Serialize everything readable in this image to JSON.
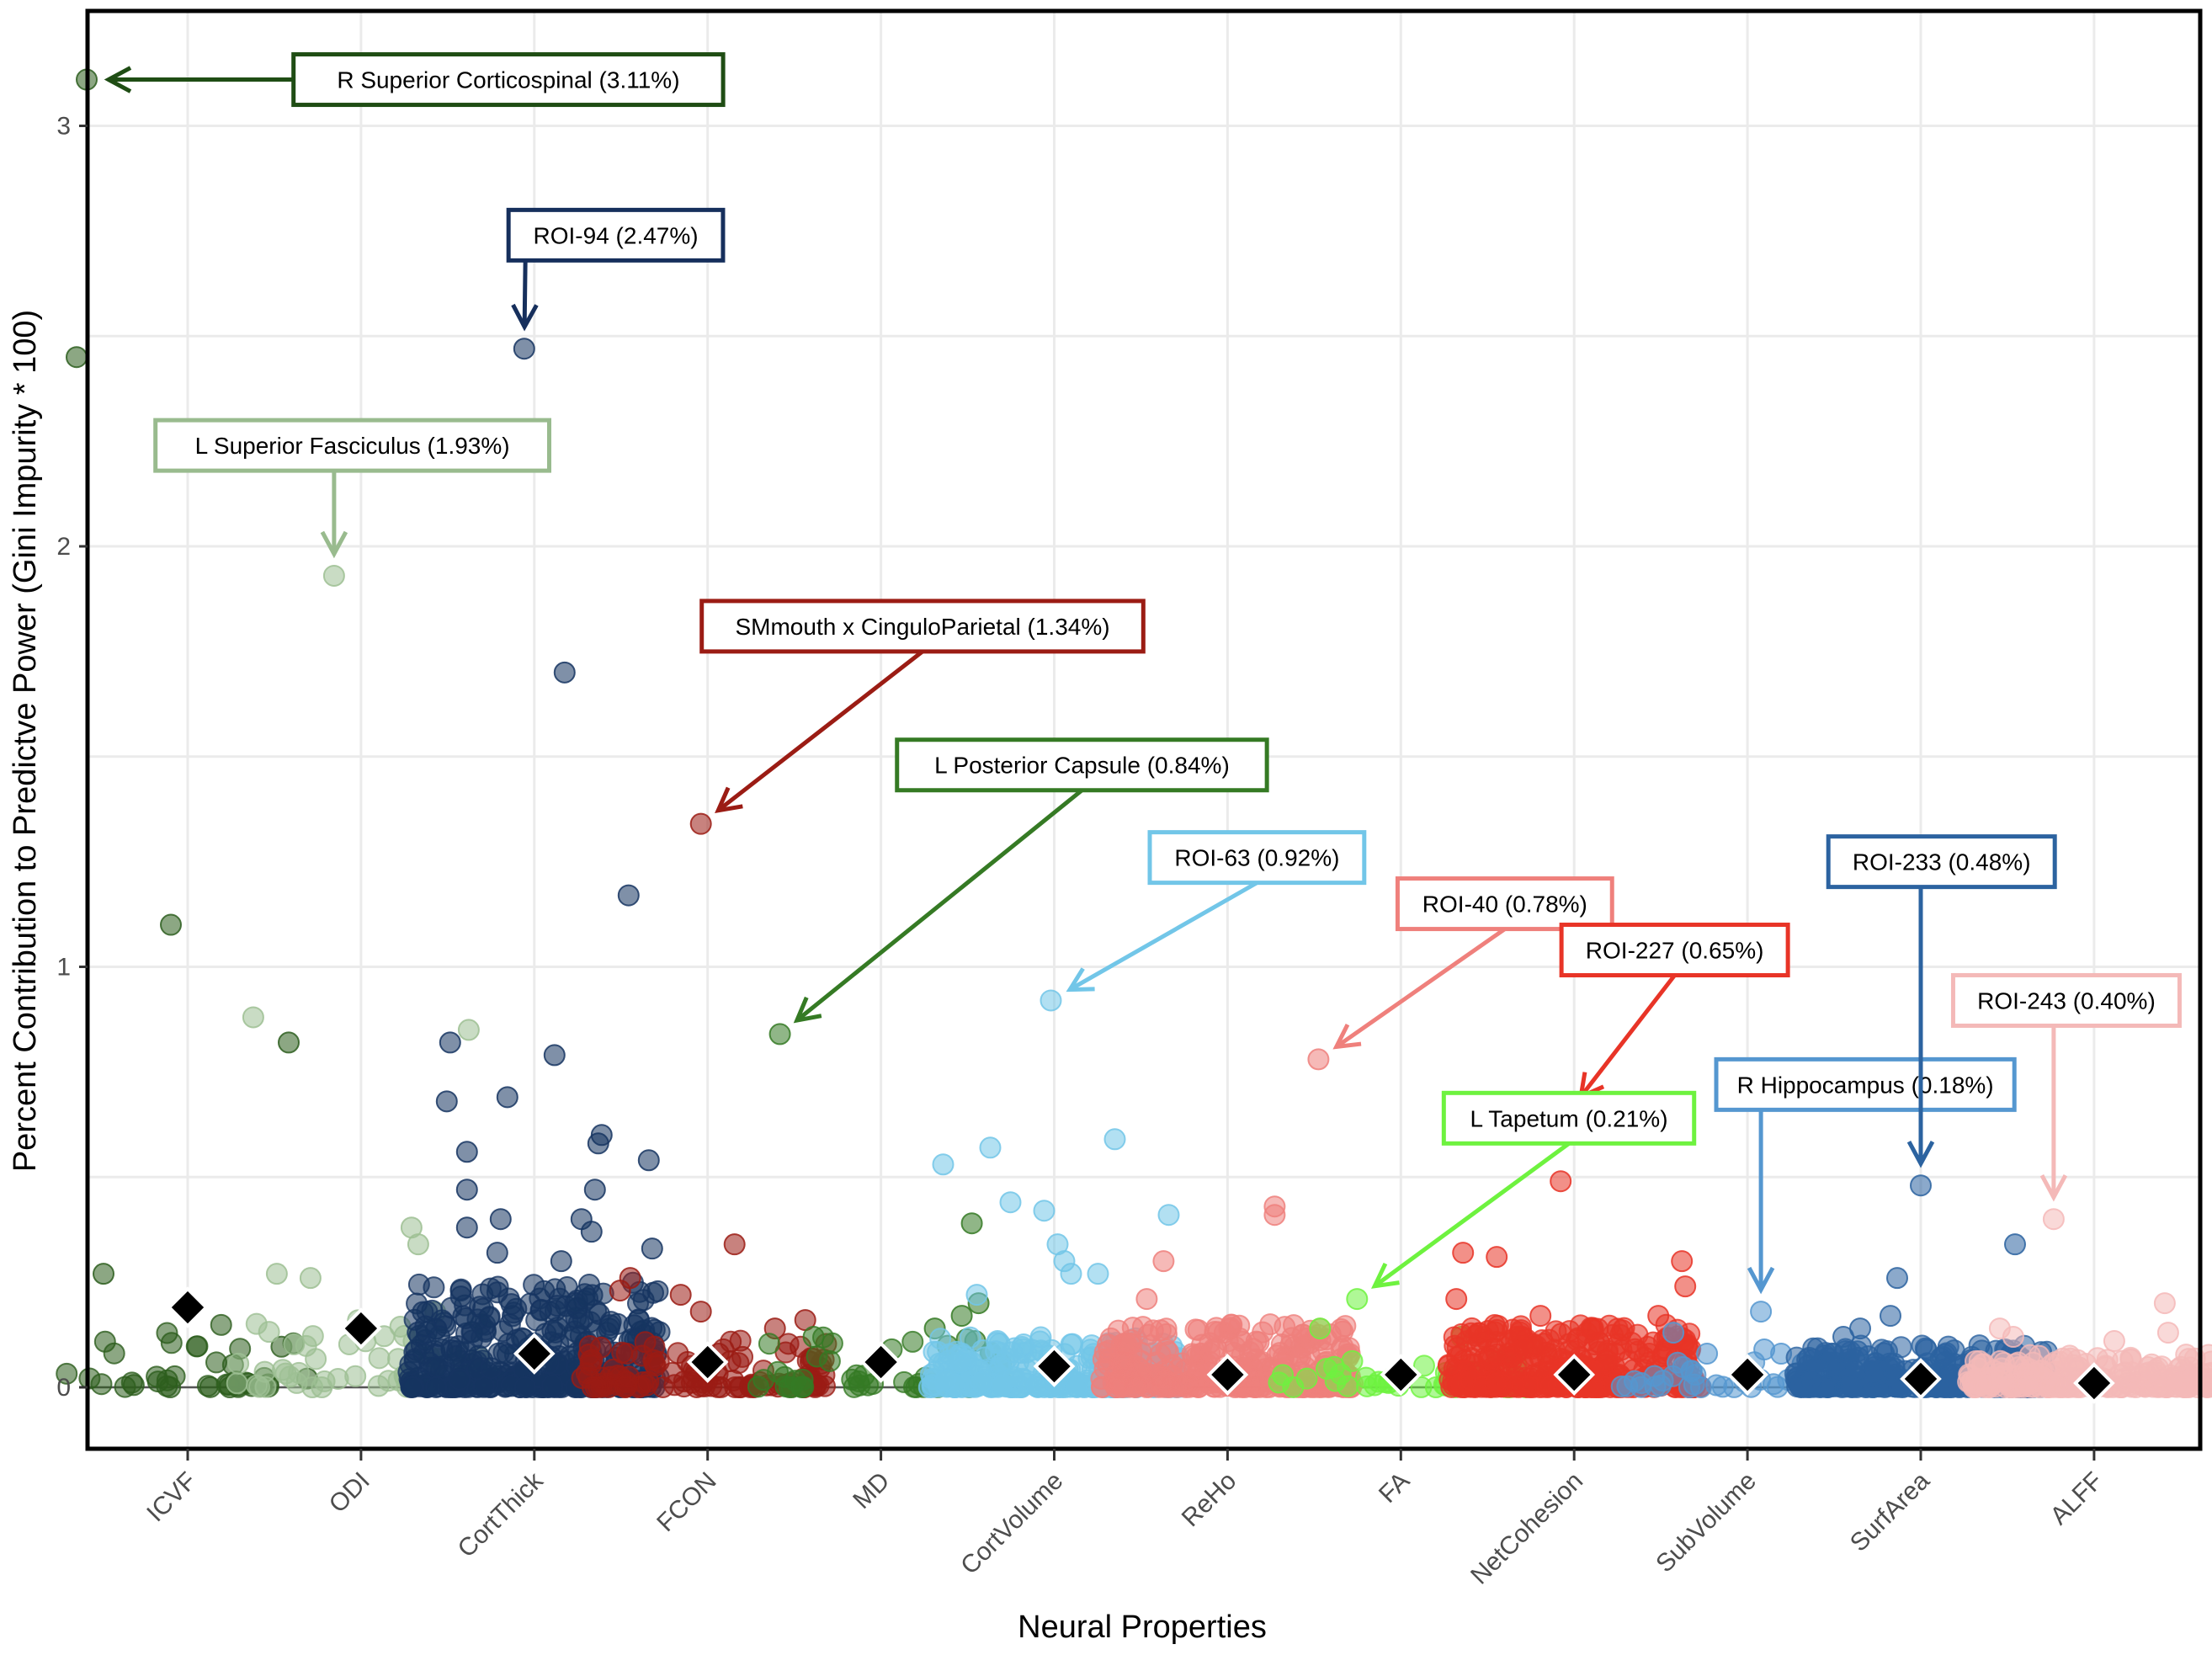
{
  "chart_data": {
    "type": "scatter",
    "subtype": "jittered strip plot with mean markers",
    "title": "",
    "xlabel": "Neural Properties",
    "ylabel": "Percent Contribution to Predictve Power (Gini Impurity * 100)",
    "ylim": [
      -0.2,
      3.22
    ],
    "yticks": [
      0,
      1,
      2,
      3
    ],
    "ytick_labels": [
      "0",
      "1",
      "2",
      "3"
    ],
    "minor_gridlines": [
      0.5,
      1.5,
      2.5,
      3.0
    ],
    "grid": true,
    "reference_line": 0,
    "mean_marker": "black diamond",
    "categories": [
      "ICVF",
      "ODI",
      "CortThick",
      "FCON",
      "MD",
      "CortVolume",
      "ReHo",
      "FA",
      "NetCohesion",
      "SubVolume",
      "SurfArea",
      "ALFF"
    ],
    "series": [
      {
        "name": "ICVF",
        "color": "#2d5e1e",
        "mean": 0.19,
        "cluster_count": 40,
        "cluster_max": 0.15,
        "points": [
          [
            -0.3,
            3.11
          ],
          [
            -0.33,
            2.45
          ],
          [
            -0.05,
            1.1
          ],
          [
            0.3,
            0.82
          ],
          [
            -0.25,
            0.27
          ]
        ]
      },
      {
        "name": "ODI",
        "color": "#9dbf93",
        "mean": 0.14,
        "cluster_count": 45,
        "cluster_max": 0.18,
        "points": [
          [
            -0.08,
            1.93
          ],
          [
            -0.32,
            0.88
          ],
          [
            0.32,
            0.85
          ],
          [
            0.15,
            0.38
          ],
          [
            0.17,
            0.34
          ],
          [
            -0.25,
            0.27
          ],
          [
            -0.15,
            0.26
          ]
        ]
      },
      {
        "name": "CortThick",
        "color": "#163561",
        "mean": 0.08,
        "cluster_count": 420,
        "cluster_max": 0.25,
        "points": [
          [
            -0.03,
            2.47
          ],
          [
            0.09,
            1.7
          ],
          [
            0.28,
            1.17
          ],
          [
            -0.25,
            0.82
          ],
          [
            0.06,
            0.79
          ],
          [
            -0.26,
            0.68
          ],
          [
            -0.08,
            0.69
          ],
          [
            0.2,
            0.6
          ],
          [
            0.19,
            0.58
          ],
          [
            0.34,
            0.54
          ],
          [
            -0.2,
            0.56
          ],
          [
            -0.2,
            0.47
          ],
          [
            0.18,
            0.47
          ],
          [
            -0.2,
            0.38
          ],
          [
            0.14,
            0.4
          ],
          [
            -0.1,
            0.4
          ],
          [
            0.17,
            0.37
          ],
          [
            0.35,
            0.33
          ],
          [
            -0.11,
            0.32
          ],
          [
            0.08,
            0.3
          ]
        ]
      },
      {
        "name": "FCON",
        "color": "#9b1c14",
        "mean": 0.06,
        "cluster_count": 120,
        "cluster_max": 0.12,
        "points": [
          [
            -0.02,
            1.34
          ],
          [
            0.08,
            0.34
          ],
          [
            -0.23,
            0.26
          ],
          [
            -0.26,
            0.23
          ],
          [
            -0.08,
            0.22
          ],
          [
            0.29,
            0.16
          ],
          [
            0.2,
            0.14
          ],
          [
            -0.02,
            0.18
          ]
        ]
      },
      {
        "name": "MD",
        "color": "#357a24",
        "mean": 0.06,
        "cluster_count": 45,
        "cluster_max": 0.12,
        "points": [
          [
            -0.3,
            0.84
          ],
          [
            0.27,
            0.39
          ],
          [
            0.29,
            0.2
          ],
          [
            0.24,
            0.17
          ],
          [
            0.16,
            0.14
          ],
          [
            -0.2,
            0.12
          ],
          [
            0.28,
            0.11
          ]
        ]
      },
      {
        "name": "CortVolume",
        "color": "#72c6e8",
        "mean": 0.05,
        "cluster_count": 300,
        "cluster_max": 0.12,
        "points": [
          [
            -0.01,
            0.92
          ],
          [
            -0.33,
            0.53
          ],
          [
            -0.19,
            0.57
          ],
          [
            0.18,
            0.59
          ],
          [
            -0.13,
            0.44
          ],
          [
            -0.03,
            0.42
          ],
          [
            0.34,
            0.41
          ],
          [
            0.01,
            0.34
          ],
          [
            0.03,
            0.3
          ],
          [
            0.05,
            0.27
          ],
          [
            -0.23,
            0.22
          ],
          [
            0.13,
            0.27
          ]
        ]
      },
      {
        "name": "ReHo",
        "color": "#ef807c",
        "mean": 0.03,
        "cluster_count": 320,
        "cluster_max": 0.15,
        "points": [
          [
            0.27,
            0.78
          ],
          [
            0.14,
            0.43
          ],
          [
            0.14,
            0.41
          ],
          [
            -0.19,
            0.3
          ],
          [
            -0.24,
            0.21
          ]
        ]
      },
      {
        "name": "FA",
        "color": "#6ef23f",
        "mean": 0.03,
        "cluster_count": 40,
        "cluster_max": 0.07,
        "points": [
          [
            -0.13,
            0.21
          ],
          [
            -0.24,
            0.14
          ],
          [
            0.18,
            0.12
          ]
        ]
      },
      {
        "name": "NetCohesion",
        "color": "#e83427",
        "mean": 0.03,
        "cluster_count": 380,
        "cluster_max": 0.15,
        "points": [
          [
            -0.02,
            0.65
          ],
          [
            -0.04,
            0.49
          ],
          [
            -0.33,
            0.32
          ],
          [
            -0.23,
            0.31
          ],
          [
            0.32,
            0.3
          ],
          [
            0.33,
            0.24
          ],
          [
            -0.35,
            0.21
          ],
          [
            -0.1,
            0.17
          ],
          [
            0.25,
            0.17
          ]
        ]
      },
      {
        "name": "SubVolume",
        "color": "#5597d0",
        "mean": 0.03,
        "cluster_count": 40,
        "cluster_max": 0.06,
        "points": [
          [
            0.04,
            0.18
          ],
          [
            -0.22,
            0.13
          ],
          [
            -0.12,
            0.08
          ],
          [
            0.05,
            0.09
          ],
          [
            0.1,
            0.08
          ]
        ]
      },
      {
        "name": "SurfArea",
        "color": "#2c63a0",
        "mean": 0.02,
        "cluster_count": 340,
        "cluster_max": 0.1,
        "points": [
          [
            0.0,
            0.48
          ],
          [
            0.28,
            0.34
          ],
          [
            -0.07,
            0.26
          ],
          [
            -0.09,
            0.17
          ],
          [
            -0.18,
            0.14
          ],
          [
            -0.23,
            0.12
          ]
        ]
      },
      {
        "name": "ALFF",
        "color": "#f4b9b8",
        "mean": 0.01,
        "cluster_count": 260,
        "cluster_max": 0.08,
        "points": [
          [
            -0.12,
            0.4
          ],
          [
            0.21,
            0.2
          ],
          [
            0.22,
            0.13
          ],
          [
            -0.28,
            0.14
          ],
          [
            -0.24,
            0.12
          ],
          [
            0.06,
            0.11
          ]
        ]
      }
    ],
    "annotations": [
      {
        "text": "R Superior Corticospinal (3.11%)",
        "category": "ICVF",
        "target": [
          -0.3,
          3.11
        ],
        "value": 3.11,
        "color": "#1f4d14",
        "box_center": [
          1.85,
          3.11
        ],
        "arrow_from": "left"
      },
      {
        "text": "ROI-94 (2.47%)",
        "category": "CortThick",
        "target": [
          -0.03,
          2.47
        ],
        "value": 2.47,
        "color": "#162f5c",
        "box_center": [
          2.47,
          2.74
        ],
        "arrow_from": "bottom"
      },
      {
        "text": "L Superior Fasciculus (1.93%)",
        "category": "ODI",
        "target": [
          -0.08,
          1.93
        ],
        "value": 1.93,
        "color": "#99bb8e",
        "box_center": [
          0.95,
          2.24
        ],
        "arrow_from": "bottom"
      },
      {
        "text": "SMmouth x CinguloParietal (1.34%)",
        "category": "FCON",
        "target": [
          -0.02,
          1.34
        ],
        "value": 1.34,
        "color": "#9b1c14",
        "box_center": [
          4.24,
          1.81
        ],
        "arrow_from": "bottom"
      },
      {
        "text": "L Posterior Capsule (0.84%)",
        "category": "MD",
        "target": [
          -0.3,
          0.84
        ],
        "value": 0.84,
        "color": "#357a24",
        "box_center": [
          5.16,
          1.48
        ],
        "arrow_from": "bottom"
      },
      {
        "text": "ROI-63 (0.92%)",
        "category": "CortVolume",
        "target": [
          -0.01,
          0.92
        ],
        "value": 0.92,
        "color": "#72c6e8",
        "box_center": [
          6.17,
          1.26
        ],
        "arrow_from": "bottom"
      },
      {
        "text": "ROI-40 (0.78%)",
        "category": "ReHo",
        "target": [
          0.27,
          0.78
        ],
        "value": 0.78,
        "color": "#ef807c",
        "box_center": [
          7.6,
          1.15
        ],
        "arrow_from": "bottom"
      },
      {
        "text": "ROI-227 (0.65%)",
        "category": "NetCohesion",
        "target": [
          -0.02,
          0.65
        ],
        "value": 0.65,
        "color": "#e83427",
        "box_center": [
          8.58,
          1.04
        ],
        "arrow_from": "bottom"
      },
      {
        "text": "L Tapetum (0.21%)",
        "category": "FA",
        "target": [
          -0.13,
          0.21
        ],
        "value": 0.21,
        "color": "#6ef23f",
        "box_center": [
          7.97,
          0.64
        ],
        "arrow_from": "bottom"
      },
      {
        "text": "R Hippocampus (0.18%)",
        "category": "SubVolume",
        "target": [
          0.04,
          0.18
        ],
        "value": 0.18,
        "color": "#5597d0",
        "box_center": [
          9.68,
          0.72
        ],
        "arrow_from": "bottom"
      },
      {
        "text": "ROI-233 (0.48%)",
        "category": "SurfArea",
        "target": [
          0.0,
          0.48
        ],
        "value": 0.48,
        "color": "#2c63a0",
        "box_center": [
          10.12,
          1.25
        ],
        "arrow_from": "bottom"
      },
      {
        "text": "ROI-243 (0.40%)",
        "category": "ALFF",
        "target": [
          -0.12,
          0.4
        ],
        "value": 0.4,
        "color": "#f4b9b8",
        "box_center": [
          10.84,
          0.92
        ],
        "arrow_from": "bottom"
      }
    ]
  }
}
